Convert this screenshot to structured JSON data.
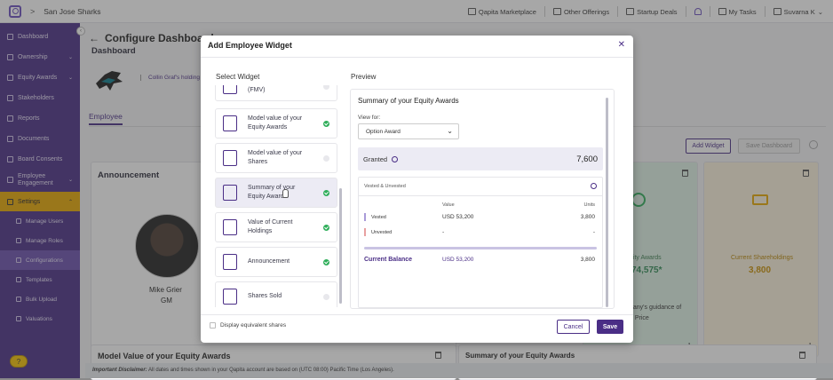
{
  "topbar": {
    "company": "San Jose Sharks",
    "nav": [
      "Qapita Marketplace",
      "Other Offerings",
      "Startup Deals",
      "My Tasks",
      "Suvarna K"
    ]
  },
  "sidebar": {
    "items": [
      {
        "label": "Dashboard"
      },
      {
        "label": "Ownership",
        "chevron": "⌄"
      },
      {
        "label": "Equity Awards",
        "chevron": "⌄"
      },
      {
        "label": "Stakeholders"
      },
      {
        "label": "Reports"
      },
      {
        "label": "Documents"
      },
      {
        "label": "Board Consents"
      },
      {
        "label": "Employee Engagement",
        "chevron": "⌄"
      }
    ],
    "settings": {
      "label": "Settings",
      "chevron": "⌃"
    },
    "sub_items": [
      "Manage Users",
      "Manage Roles",
      "Configurations",
      "Templates",
      "Bulk Upload",
      "Valuations"
    ],
    "help": "?"
  },
  "main": {
    "title": "Configure Dashboard",
    "subtitle": "Dashboard",
    "holding": "Collin Graf's holding",
    "tab": "Employee",
    "add_widget": "Add Widget",
    "save_dashboard": "Save Dashboard",
    "announcement": {
      "title": "Announcement",
      "name": "Mike Grier",
      "role": "GM"
    },
    "equity_card": {
      "title": "uity Awards",
      "value": "74,575*",
      "note1": "pany's guidance of",
      "note2": "e Price"
    },
    "shareholdings_card": {
      "title": "Current Shareholdings",
      "value": "3,800"
    },
    "bottom_left_title": "Model Value of your Equity Awards",
    "bottom_right_title": "Summary of your Equity Awards",
    "disclaimer_label": "Important Disclaimer:",
    "disclaimer_text": " All dates and times shown in your Qapita account are based on (UTC 08:00) Pacific Time (Los Angeles)."
  },
  "modal": {
    "title": "Add Employee Widget",
    "close": "✕",
    "select_label": "Select Widget",
    "preview_label": "Preview",
    "widgets": [
      {
        "label": "Fair Market Value (FMV)",
        "checked": false
      },
      {
        "label": "Model value of your Equity Awards",
        "checked": true
      },
      {
        "label": "Model value of your Shares",
        "checked": false
      },
      {
        "label": "Summary of your Equity Awards",
        "checked": true,
        "selected": true
      },
      {
        "label": "Value of Current Holdings",
        "checked": true
      },
      {
        "label": "Announcement",
        "checked": true
      },
      {
        "label": "Shares Sold",
        "checked": false
      }
    ],
    "preview": {
      "title": "Summary of your Equity Awards",
      "view_for": "View for:",
      "view_for_value": "Option Award",
      "granted_label": "Granted",
      "granted_value": "7,600",
      "vu_header": "Vested & Unvested",
      "col_value": "Value",
      "col_units": "Units",
      "rows": [
        {
          "label": "Vested",
          "value": "USD 53,200",
          "units": "3,800",
          "color": "#a99bd8"
        },
        {
          "label": "Unvested",
          "value": "-",
          "units": "-",
          "color": "#e8a0a0"
        }
      ],
      "current_balance_label": "Current Balance",
      "current_balance_value": "USD 53,200",
      "current_balance_units": "3,800"
    },
    "display_equivalent": "Display equivalent shares",
    "cancel": "Cancel",
    "save": "Save"
  }
}
